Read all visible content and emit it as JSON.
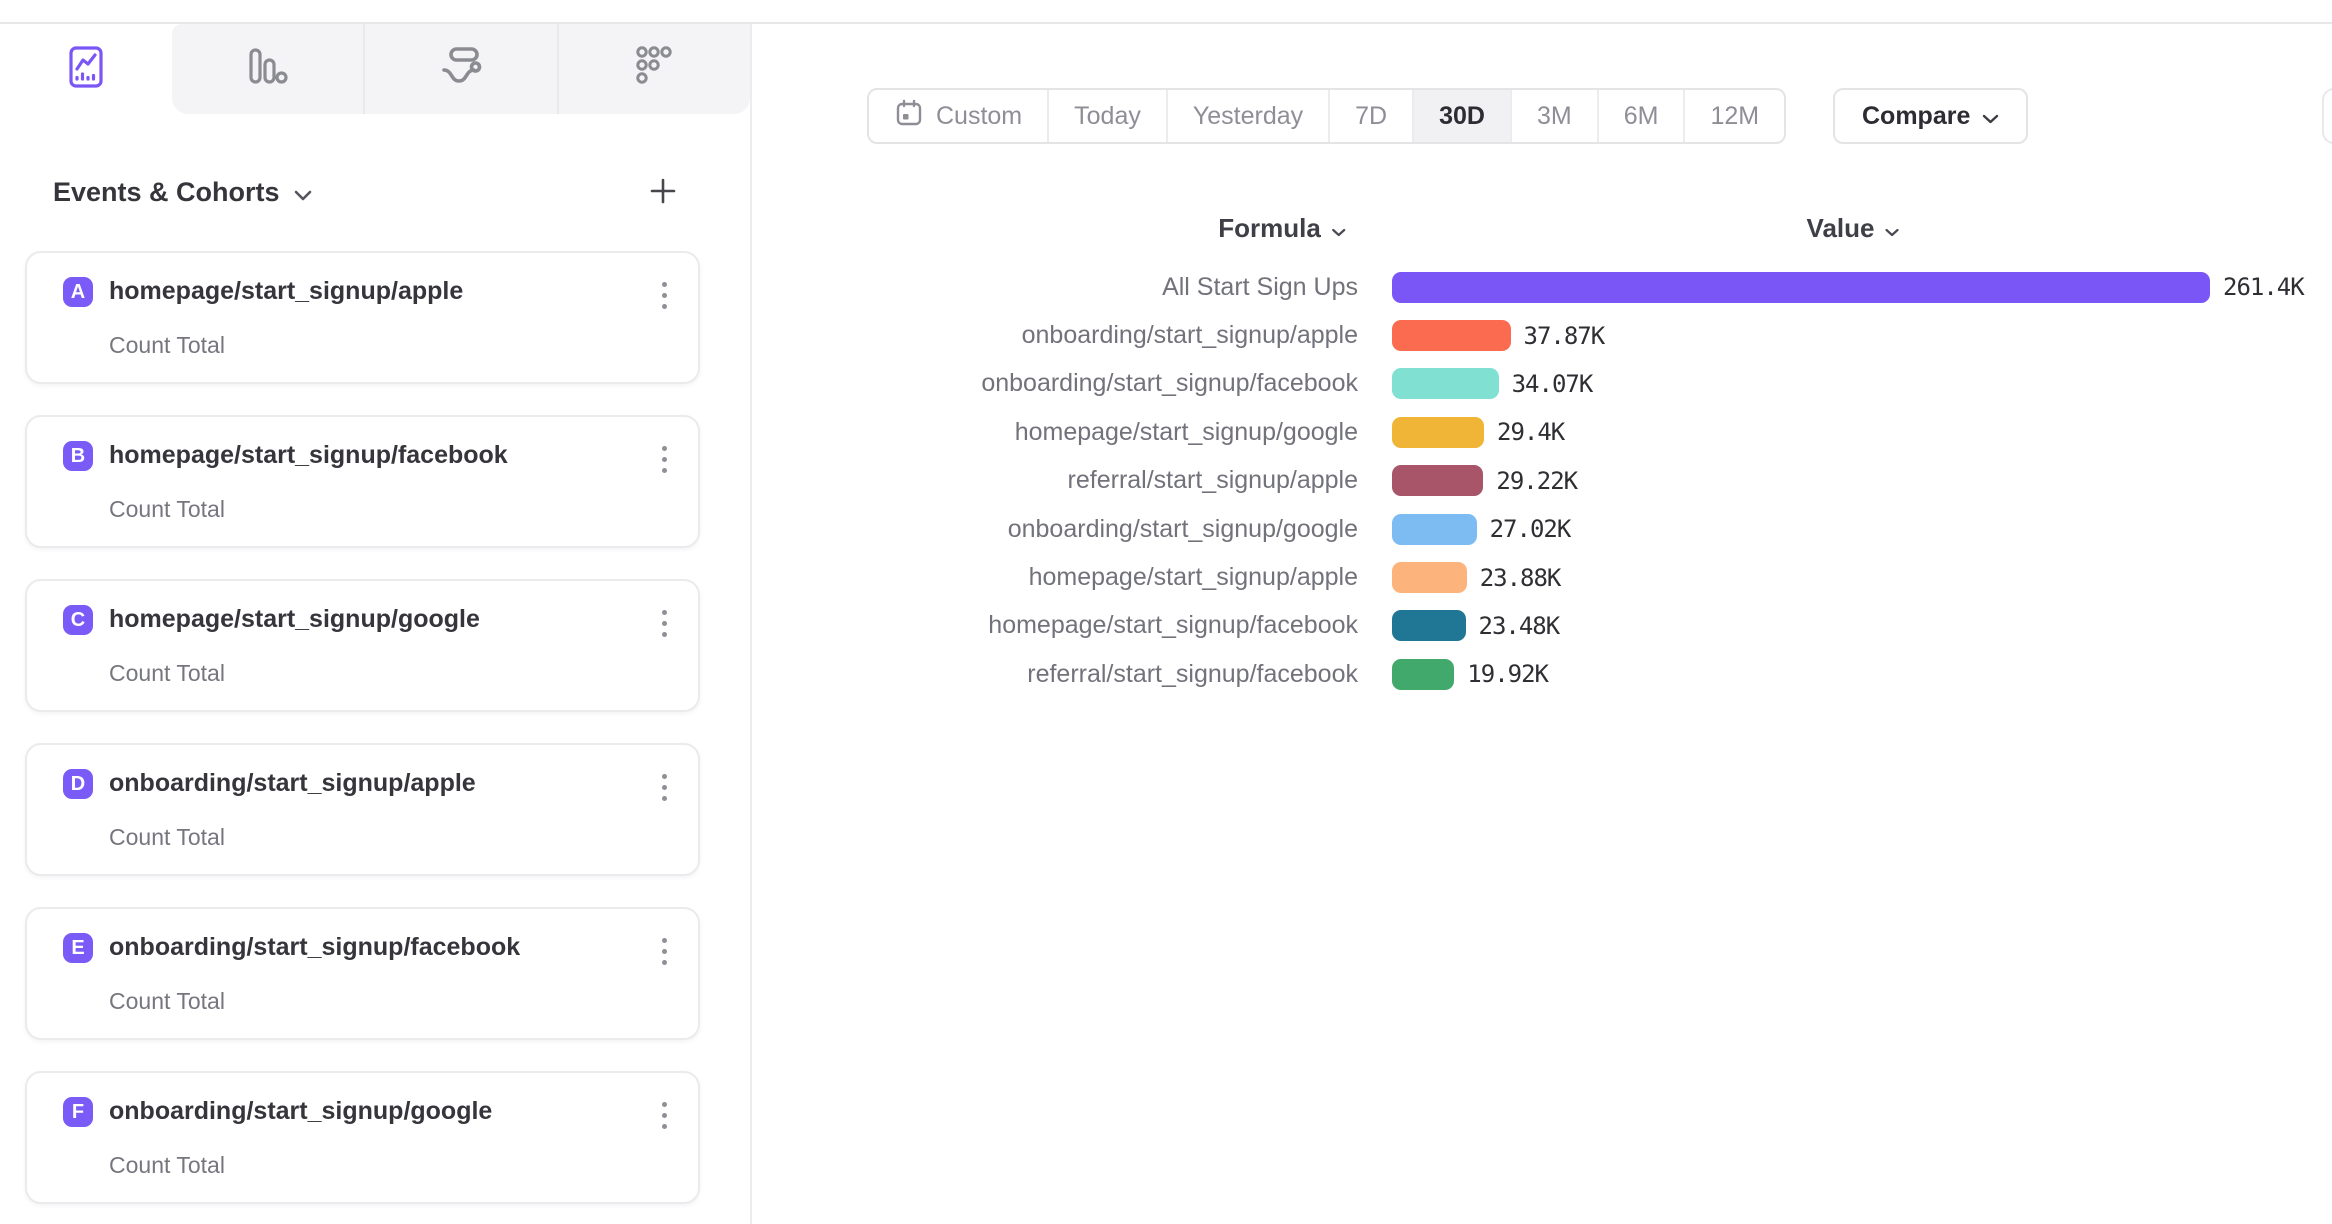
{
  "colors": {
    "accent": "#7B56F7",
    "badge": "#7A5BF7",
    "tab_icon_gray": "#8b8b92"
  },
  "tabs": {
    "items": [
      {
        "id": "insights",
        "icon": "line-chart-icon",
        "selected": true
      },
      {
        "id": "bar-chart",
        "icon": "bar-chart-icon",
        "selected": false
      },
      {
        "id": "flows",
        "icon": "flows-icon",
        "selected": false
      },
      {
        "id": "retention",
        "icon": "dots-grid-icon",
        "selected": false
      }
    ]
  },
  "sidebar": {
    "header": {
      "title": "Events & Cohorts"
    },
    "metric_label": "Count Total",
    "events": [
      {
        "letter": "A",
        "name": "homepage/start_signup/apple",
        "metric": "Count Total"
      },
      {
        "letter": "B",
        "name": "homepage/start_signup/facebook",
        "metric": "Count Total"
      },
      {
        "letter": "C",
        "name": "homepage/start_signup/google",
        "metric": "Count Total"
      },
      {
        "letter": "D",
        "name": "onboarding/start_signup/apple",
        "metric": "Count Total"
      },
      {
        "letter": "E",
        "name": "onboarding/start_signup/facebook",
        "metric": "Count Total"
      },
      {
        "letter": "F",
        "name": "onboarding/start_signup/google",
        "metric": "Count Total"
      }
    ]
  },
  "toolbar": {
    "ranges": [
      "Custom",
      "Today",
      "Yesterday",
      "7D",
      "30D",
      "3M",
      "6M",
      "12M"
    ],
    "selected_range": "30D",
    "compare_label": "Compare"
  },
  "chart": {
    "formula_header": "Formula",
    "value_header": "Value"
  },
  "chart_data": {
    "type": "bar",
    "orientation": "horizontal",
    "title": "",
    "xlabel": "Value",
    "ylabel": "Formula",
    "categories": [
      "All Start Sign Ups",
      "onboarding/start_signup/apple",
      "onboarding/start_signup/facebook",
      "homepage/start_signup/google",
      "referral/start_signup/apple",
      "onboarding/start_signup/google",
      "homepage/start_signup/apple",
      "homepage/start_signup/facebook",
      "referral/start_signup/facebook"
    ],
    "values": [
      261.4,
      37.87,
      34.07,
      29.4,
      29.22,
      27.02,
      23.88,
      23.48,
      19.92
    ],
    "value_labels": [
      "261.4K",
      "37.87K",
      "34.07K",
      "29.4K",
      "29.22K",
      "27.02K",
      "23.88K",
      "23.48K",
      "19.92K"
    ],
    "unit": "K",
    "colors": [
      "#7B56F7",
      "#FA6B50",
      "#80E0D1",
      "#F0B437",
      "#A85469",
      "#7CBCF2",
      "#FCB47C",
      "#1F7795",
      "#41A96C"
    ],
    "xlim": [
      0,
      261.4
    ],
    "grid": false,
    "legend": false
  }
}
